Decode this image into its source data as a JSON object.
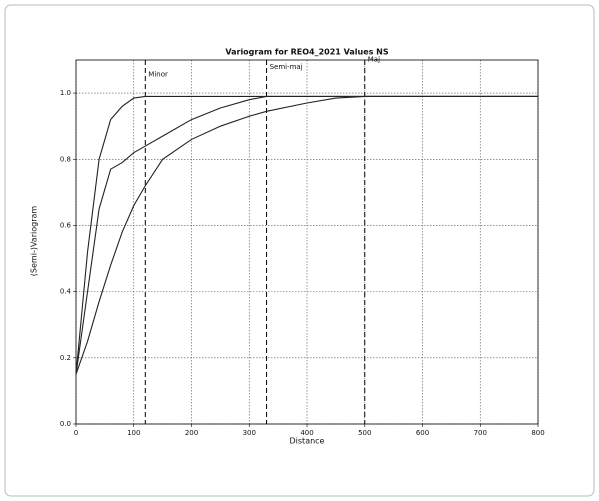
{
  "chart_data": {
    "type": "line",
    "title": "Variogram for REO4_2021 Values NS",
    "x_label": "Distance",
    "y_label": "(Semi-)Variogram",
    "x": [
      0,
      20,
      40,
      60,
      80,
      100,
      120,
      150,
      200,
      250,
      300,
      330,
      400,
      450,
      500,
      600,
      700,
      800
    ],
    "series": [
      {
        "color": "#222222",
        "values": [
          0.15,
          0.52,
          0.8,
          0.92,
          0.96,
          0.985,
          0.99,
          0.99,
          0.99,
          0.99,
          0.99,
          0.99,
          0.99,
          0.99,
          0.99,
          0.99,
          0.99,
          0.99
        ]
      },
      {
        "color": "#222222",
        "values": [
          0.15,
          0.4,
          0.65,
          0.77,
          0.79,
          0.82,
          0.84,
          0.87,
          0.92,
          0.955,
          0.98,
          0.99,
          0.99,
          0.99,
          0.99,
          0.99,
          0.99,
          0.99
        ]
      },
      {
        "color": "#222222",
        "values": [
          0.15,
          0.25,
          0.37,
          0.48,
          0.58,
          0.66,
          0.72,
          0.8,
          0.86,
          0.9,
          0.93,
          0.945,
          0.97,
          0.985,
          0.99,
          0.99,
          0.99,
          0.99
        ]
      }
    ],
    "markers": [
      {
        "x": 120,
        "label": "Minor",
        "color": "#3a3aa8"
      },
      {
        "x": 330,
        "label": "Semi-maj",
        "color": "#2e8b2e"
      },
      {
        "x": 500,
        "label": "Maj",
        "color": "#9a2a1a"
      }
    ],
    "xlim": [
      0,
      800
    ],
    "xticks": [
      0,
      100,
      200,
      300,
      400,
      500,
      600,
      700,
      800
    ],
    "ylim": [
      0,
      1.1
    ],
    "yticks": [
      {
        "value": 0,
        "label": "0.0"
      },
      0.2,
      0.4,
      0.6,
      0.8,
      {
        "value": 1,
        "label": "1.0"
      }
    ],
    "grid": true
  }
}
